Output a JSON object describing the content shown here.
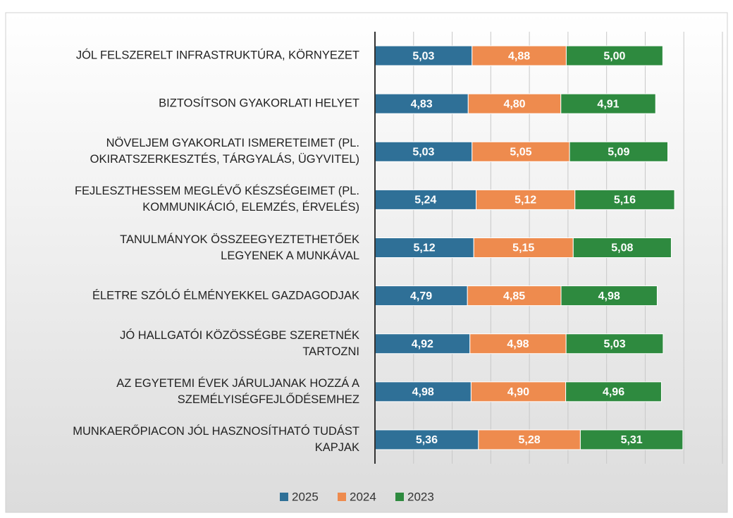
{
  "chart_data": {
    "type": "stacked_barh",
    "categories": [
      "JÓL FELSZERELT INFRASTRUKTÚRA, KÖRNYEZET",
      "BIZTOSÍTSON GYAKORLATI HELYET",
      "NÖVELJEM GYAKORLATI ISMERETEIMET (PL.\nOKIRATSZERKESZTÉS, TÁRGYALÁS, ÜGYVITEL)",
      "FEJLESZTHESSEM MEGLÉVŐ KÉSZSÉGEIMET (PL.\nKOMMUNIKÁCIÓ, ELEMZÉS, ÉRVELÉS)",
      "TANULMÁNYOK ÖSSZEEGYEZTETHETŐEK\nLEGYENEK A MUNKÁVAL",
      "ÉLETRE SZÓLÓ ÉLMÉNYEKKEL GAZDAGODJAK",
      "JÓ HALLGATÓI KÖZÖSSÉGBE SZERETNÉK\nTARTOZNI",
      "AZ EGYETEMI ÉVEK JÁRULJANAK HOZZÁ A\nSZEMÉLYISÉGFEJLŐDÉSEMHEZ",
      "MUNKAERŐPIACON JÓL HASZNOSÍTHATÓ TUDÁST\nKAPJAK"
    ],
    "series": [
      {
        "name": "2025",
        "color": "#2f7097",
        "values": [
          5.03,
          4.83,
          5.03,
          5.24,
          5.12,
          4.79,
          4.92,
          4.98,
          5.36
        ],
        "value_labels": [
          "5,03",
          "4,83",
          "5,03",
          "5,24",
          "5,12",
          "4,79",
          "4,92",
          "4,98",
          "5,36"
        ]
      },
      {
        "name": "2024",
        "color": "#ee8b4e",
        "values": [
          4.88,
          4.8,
          5.05,
          5.12,
          5.15,
          4.85,
          4.98,
          4.9,
          5.28
        ],
        "value_labels": [
          "4,88",
          "4,80",
          "5,05",
          "5,12",
          "5,15",
          "4,85",
          "4,98",
          "4,90",
          "5,28"
        ]
      },
      {
        "name": "2023",
        "color": "#2e8a3f",
        "values": [
          5.0,
          4.91,
          5.09,
          5.16,
          5.08,
          4.98,
          5.03,
          4.96,
          5.31
        ],
        "value_labels": [
          "5,00",
          "4,91",
          "5,09",
          "5,16",
          "5,08",
          "4,98",
          "5,03",
          "4,96",
          "5,31"
        ]
      }
    ],
    "xlim": [
      0,
      18
    ],
    "xticks": [
      0,
      2,
      4,
      6,
      8,
      10,
      12,
      14,
      16,
      18
    ],
    "grid": true,
    "legend": "bottom"
  }
}
